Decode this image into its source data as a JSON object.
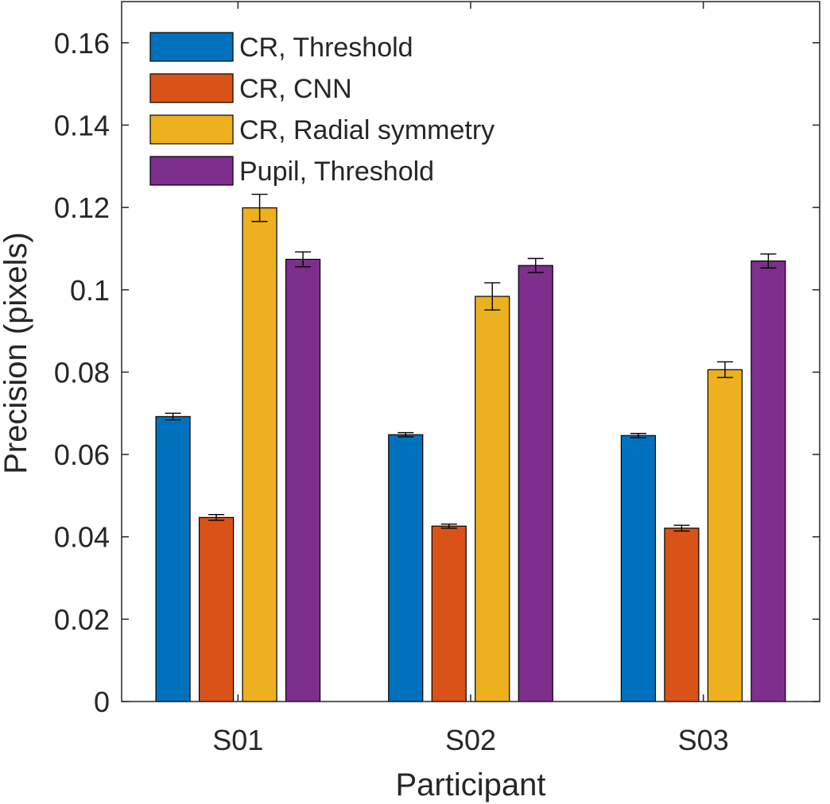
{
  "chart_data": {
    "type": "bar",
    "title": "",
    "xlabel": "Participant",
    "ylabel": "Precision (pixels)",
    "categories": [
      "S01",
      "S02",
      "S03"
    ],
    "ylim": [
      0,
      0.17
    ],
    "yticks": [
      0,
      0.02,
      0.04,
      0.06,
      0.08,
      0.1,
      0.12,
      0.14,
      0.16
    ],
    "ytick_labels": [
      "0",
      "0.02",
      "0.04",
      "0.06",
      "0.08",
      "0.1",
      "0.12",
      "0.14",
      "0.16"
    ],
    "grid": false,
    "legend_position": "top-left",
    "series": [
      {
        "name": "CR, Threshold",
        "color": "#0072BD",
        "values": [
          0.0692,
          0.0648,
          0.0646
        ],
        "errors": [
          0.0008,
          0.0005,
          0.0005
        ]
      },
      {
        "name": "CR, CNN",
        "color": "#D95319",
        "values": [
          0.0447,
          0.0426,
          0.0421
        ],
        "errors": [
          0.0007,
          0.0005,
          0.0007
        ]
      },
      {
        "name": "CR, Radial symmetry",
        "color": "#EDB120",
        "values": [
          0.1199,
          0.0984,
          0.0806
        ],
        "errors": [
          0.0033,
          0.0033,
          0.0019
        ]
      },
      {
        "name": "Pupil, Threshold",
        "color": "#7E2F8E",
        "values": [
          0.1074,
          0.1059,
          0.107
        ],
        "errors": [
          0.0018,
          0.0017,
          0.0017
        ]
      }
    ]
  }
}
